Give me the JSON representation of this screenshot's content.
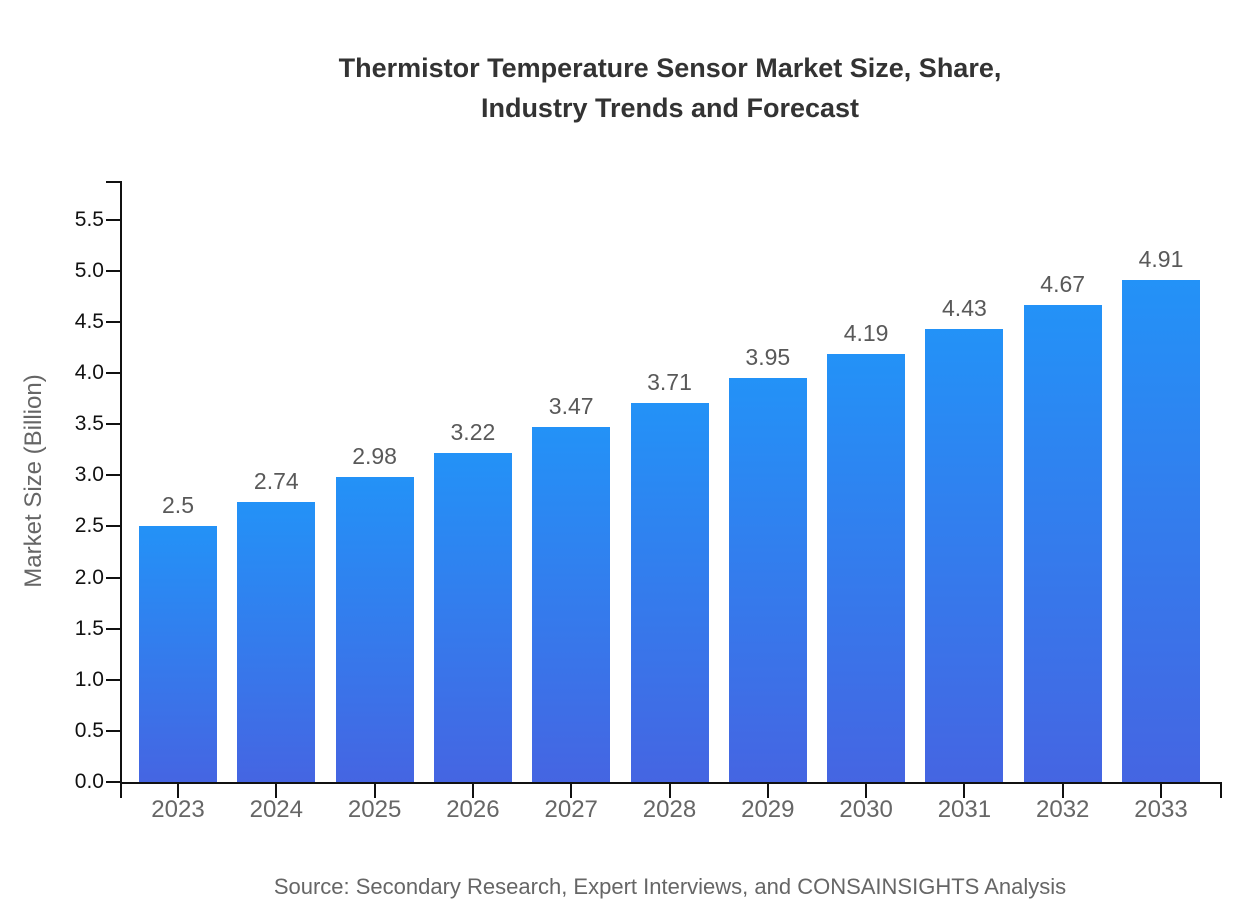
{
  "title": {
    "line1": "Thermistor Temperature Sensor Market Size, Share,",
    "line2": "Industry Trends and Forecast"
  },
  "source_note": "Source: Secondary Research, Expert Interviews, and CONSAINSIGHTS Analysis",
  "colors": {
    "background": "#ffffff",
    "title_text": "#333333",
    "axis_line": "#111111",
    "ytick_label": "#111111",
    "xtick_label": "#666666",
    "value_label": "#595959",
    "axis_title": "#666666",
    "source_text": "#666666",
    "bar_gradient_top": "#2392f7",
    "bar_gradient_bottom": "#4565e2"
  },
  "chart_data": {
    "type": "bar",
    "title": "Thermistor Temperature Sensor Market Size, Share, Industry Trends and Forecast",
    "categories": [
      "2023",
      "2024",
      "2025",
      "2026",
      "2027",
      "2028",
      "2029",
      "2030",
      "2031",
      "2032",
      "2033"
    ],
    "values": [
      2.5,
      2.74,
      2.98,
      3.22,
      3.47,
      3.71,
      3.95,
      4.19,
      4.43,
      4.67,
      4.91
    ],
    "value_labels": [
      "2.5",
      "2.74",
      "2.98",
      "3.22",
      "3.47",
      "3.71",
      "3.95",
      "4.19",
      "4.43",
      "4.67",
      "4.91"
    ],
    "xlabel": "",
    "ylabel": "Market Size (Billion)",
    "ylim": [
      0,
      5.88
    ],
    "yticks": [
      "0.0",
      "0.5",
      "1.0",
      "1.5",
      "2.0",
      "2.5",
      "3.0",
      "3.5",
      "4.0",
      "4.5",
      "5.0",
      "5.5"
    ],
    "grid": false,
    "legend": "none",
    "bar_gradient": [
      "#2392f7",
      "#4565e2"
    ]
  }
}
